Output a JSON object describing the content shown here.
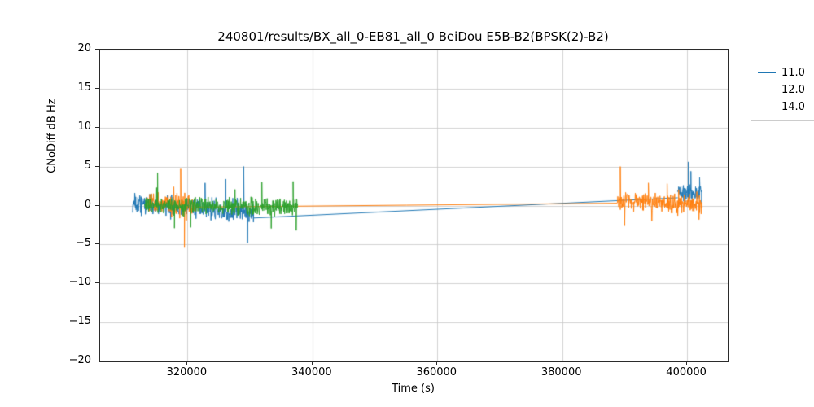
{
  "chart_data": {
    "type": "line",
    "title": "240801/results/BX_all_0-EB81_all_0 BeiDou E5B-B2(BPSK(2)-B2)",
    "xlabel": "Time (s)",
    "ylabel": "CNoDiff dB Hz",
    "xlim": [
      306000,
      406500
    ],
    "ylim": [
      -20,
      20
    ],
    "grid": true,
    "grid_color": "#c6c6c6",
    "xticks": [
      320000,
      340000,
      360000,
      380000,
      400000
    ],
    "xtick_labels": [
      "320000",
      "340000",
      "360000",
      "380000",
      "400000"
    ],
    "yticks": [
      20,
      15,
      10,
      5,
      0,
      -5,
      -10,
      -15,
      -20
    ],
    "ytick_labels": [
      "20",
      "15",
      "10",
      "5",
      "0",
      "−5",
      "−10",
      "−15",
      "−20"
    ],
    "legend_position": "outside-top-right",
    "legend": [
      {
        "label": "11.0",
        "color": "#1f77b4"
      },
      {
        "label": "12.0",
        "color": "#ff7f0e"
      },
      {
        "label": "14.0",
        "color": "#2ca02c"
      }
    ],
    "series": [
      {
        "name": "11.0",
        "color": "#1f77b4",
        "segments": [
          {
            "kind": "noise",
            "seed": 11,
            "x0": 311200,
            "x1": 330600,
            "y0": 0.3,
            "y1": -0.9,
            "amp": 1.2,
            "spikes": [
              {
                "x": 322800,
                "y": 2.9
              },
              {
                "x": 326100,
                "y": 3.4
              },
              {
                "x": 329000,
                "y": 5.0
              },
              {
                "x": 329600,
                "y": -4.8
              }
            ]
          },
          {
            "kind": "line",
            "x0": 330600,
            "y0": -1.6,
            "x1": 398500,
            "y1": 1.0
          },
          {
            "kind": "noise",
            "seed": 12,
            "x0": 398500,
            "x1": 402300,
            "y0": 1.6,
            "y1": 1.5,
            "amp": 1.1,
            "spikes": [
              {
                "x": 400200,
                "y": 5.6
              },
              {
                "x": 400600,
                "y": 4.4
              },
              {
                "x": 402000,
                "y": 3.6
              },
              {
                "x": 402300,
                "y": 0.2
              }
            ]
          }
        ]
      },
      {
        "name": "12.0",
        "color": "#ff7f0e",
        "segments": [
          {
            "kind": "noise",
            "seed": 21,
            "x0": 313600,
            "x1": 321400,
            "y0": 0.2,
            "y1": 0.0,
            "amp": 1.4,
            "spikes": [
              {
                "x": 318900,
                "y": 4.7
              },
              {
                "x": 319500,
                "y": -5.4
              }
            ]
          },
          {
            "kind": "line",
            "x0": 321400,
            "y0": -0.2,
            "x1": 388800,
            "y1": 0.3
          },
          {
            "kind": "noise",
            "seed": 22,
            "x0": 388800,
            "x1": 402400,
            "y0": 0.6,
            "y1": 0.1,
            "amp": 1.1,
            "spikes": [
              {
                "x": 389300,
                "y": 5.0
              },
              {
                "x": 390000,
                "y": -2.6
              },
              {
                "x": 393800,
                "y": 2.9
              },
              {
                "x": 396800,
                "y": 2.8
              },
              {
                "x": 401900,
                "y": -1.8
              }
            ]
          }
        ]
      },
      {
        "name": "14.0",
        "color": "#2ca02c",
        "segments": [
          {
            "kind": "noise",
            "seed": 31,
            "x0": 313100,
            "x1": 337600,
            "y0": 0.1,
            "y1": -0.2,
            "amp": 1.1,
            "spikes": [
              {
                "x": 315200,
                "y": 4.2
              },
              {
                "x": 317900,
                "y": -2.9
              },
              {
                "x": 320500,
                "y": -2.8
              },
              {
                "x": 331900,
                "y": 3.0
              },
              {
                "x": 336900,
                "y": 3.1
              },
              {
                "x": 337400,
                "y": -3.2
              }
            ]
          }
        ]
      }
    ]
  }
}
